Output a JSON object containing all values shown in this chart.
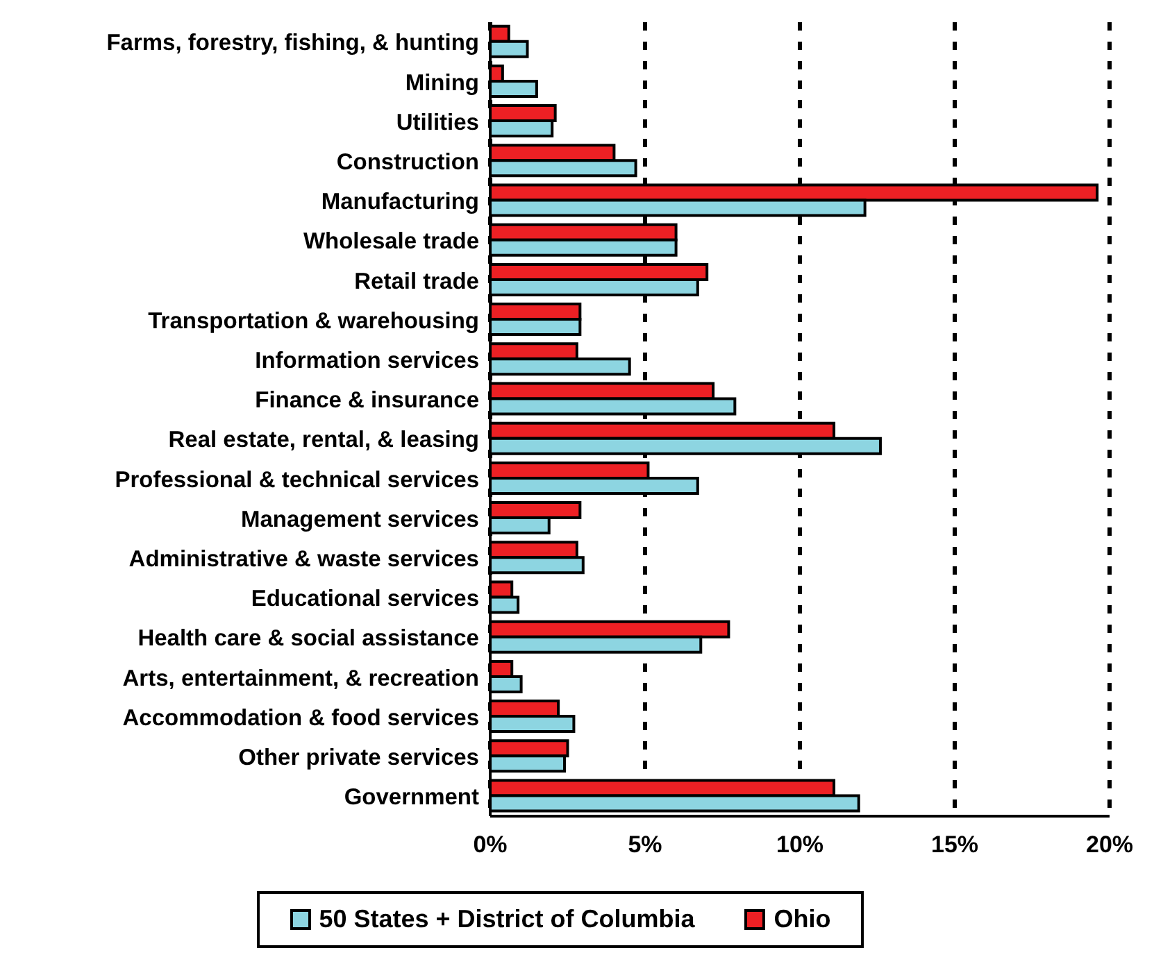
{
  "chart_data": {
    "type": "bar",
    "orientation": "horizontal",
    "categories": [
      "Farms, forestry, fishing, & hunting",
      "Mining",
      "Utilities",
      "Construction",
      "Manufacturing",
      "Wholesale trade",
      "Retail trade",
      "Transportation & warehousing",
      "Information services",
      "Finance & insurance",
      "Real estate, rental, & leasing",
      "Professional & technical services",
      "Management services",
      "Administrative & waste services",
      "Educational services",
      "Health care & social assistance",
      "Arts, entertainment, & recreation",
      "Accommodation & food services",
      "Other private services",
      "Government"
    ],
    "series": [
      {
        "name": "50 States + District of Columbia",
        "color": "#8dd5e1",
        "values": [
          1.2,
          1.5,
          2.0,
          4.7,
          12.1,
          6.0,
          6.7,
          2.9,
          4.5,
          7.9,
          12.6,
          6.7,
          1.9,
          3.0,
          0.9,
          6.8,
          1.0,
          2.7,
          2.4,
          11.9
        ]
      },
      {
        "name": "Ohio",
        "color": "#ed2024",
        "values": [
          0.6,
          0.4,
          2.1,
          4.0,
          19.6,
          6.0,
          7.0,
          2.9,
          2.8,
          7.2,
          11.1,
          5.1,
          2.9,
          2.8,
          0.7,
          7.7,
          0.7,
          2.2,
          2.5,
          11.1
        ]
      }
    ],
    "xlim": [
      0,
      20
    ],
    "xticks": [
      {
        "value": 0,
        "label": "0%"
      },
      {
        "value": 5,
        "label": "5%"
      },
      {
        "value": 10,
        "label": "10%"
      },
      {
        "value": 15,
        "label": "15%"
      },
      {
        "value": 20,
        "label": "20%"
      }
    ],
    "grid": "x",
    "legend": "bottom"
  }
}
